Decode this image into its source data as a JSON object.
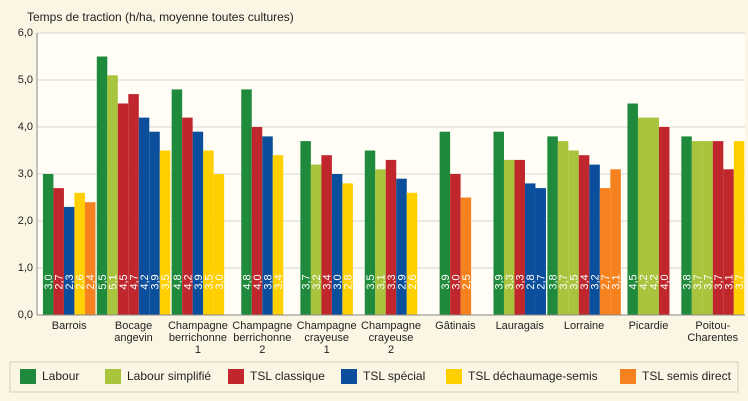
{
  "chart_data": {
    "type": "grouped-bar",
    "title": "Temps de traction (h/ha, moyenne toutes cultures)",
    "ylim": [
      0,
      6
    ],
    "yticks": [
      {
        "value": 0,
        "label": "0,0"
      },
      {
        "value": 1,
        "label": "1,0"
      },
      {
        "value": 2,
        "label": "2,0"
      },
      {
        "value": 3,
        "label": "3,0"
      },
      {
        "value": 4,
        "label": "4,0"
      },
      {
        "value": 5,
        "label": "5,0"
      },
      {
        "value": 6,
        "label": "6,0"
      }
    ],
    "grid": true,
    "legend": [
      {
        "name": "Labour",
        "color": "#1f8a3b"
      },
      {
        "name": "Labour simplifié",
        "color": "#a8c43c"
      },
      {
        "name": "TSL classique",
        "color": "#c0272d"
      },
      {
        "name": "TSL spécial",
        "color": "#0b4f9c"
      },
      {
        "name": "TSL déchaumage-semis",
        "color": "#ffcf00"
      },
      {
        "name": "TSL semis direct",
        "color": "#f5821f"
      }
    ],
    "groups": [
      {
        "category": "Barrois",
        "values": [
          3.0,
          2.7,
          2.3,
          2.6,
          2.4
        ],
        "value_labels": [
          "3,0",
          "2,7",
          "2,3",
          "2,6",
          "2,4"
        ],
        "colors": [
          "#1f8a3b",
          "#c0272d",
          "#0b4f9c",
          "#ffcf00",
          "#f5821f"
        ]
      },
      {
        "category": "Bocage\nangevin",
        "values": [
          5.5,
          5.1,
          4.5,
          4.7,
          4.2,
          3.9,
          3.5
        ],
        "value_labels": [
          "5,5",
          "5,1",
          "4,5",
          "4,7",
          "4,2",
          "3,9",
          "3,5"
        ],
        "colors": [
          "#1f8a3b",
          "#a8c43c",
          "#c0272d",
          "#c0272d",
          "#0b4f9c",
          "#0b4f9c",
          "#ffcf00"
        ]
      },
      {
        "category": "Champagne\nberrichonne\n1",
        "values": [
          4.8,
          4.2,
          3.9,
          3.5,
          3.0
        ],
        "value_labels": [
          "4,8",
          "4,2",
          "3,9",
          "3,5",
          "3,0"
        ],
        "colors": [
          "#1f8a3b",
          "#c0272d",
          "#0b4f9c",
          "#ffcf00",
          "#ffcf00"
        ]
      },
      {
        "category": "Champagne\nberrichonne\n2",
        "values": [
          4.8,
          4.0,
          3.8,
          3.4
        ],
        "value_labels": [
          "4,8",
          "4,0",
          "3,8",
          "3,4"
        ],
        "colors": [
          "#1f8a3b",
          "#c0272d",
          "#0b4f9c",
          "#ffcf00"
        ]
      },
      {
        "category": "Champagne\ncrayeuse\n1",
        "values": [
          3.7,
          3.2,
          3.4,
          3.0,
          2.8
        ],
        "value_labels": [
          "3,7",
          "3,2",
          "3,4",
          "3,0",
          "2,8"
        ],
        "colors": [
          "#1f8a3b",
          "#a8c43c",
          "#c0272d",
          "#0b4f9c",
          "#ffcf00"
        ]
      },
      {
        "category": "Champagne\ncrayeuse\n2",
        "values": [
          3.5,
          3.1,
          3.3,
          2.9,
          2.6
        ],
        "value_labels": [
          "3,5",
          "3,1",
          "3,3",
          "2,9",
          "2,6"
        ],
        "colors": [
          "#1f8a3b",
          "#a8c43c",
          "#c0272d",
          "#0b4f9c",
          "#ffcf00"
        ]
      },
      {
        "category": "Gâtinais",
        "values": [
          3.9,
          3.0,
          2.5
        ],
        "value_labels": [
          "3,9",
          "3,0",
          "2,5"
        ],
        "colors": [
          "#1f8a3b",
          "#c0272d",
          "#f5821f"
        ]
      },
      {
        "category": "Lauragais",
        "values": [
          3.9,
          3.3,
          3.3,
          2.8,
          2.7
        ],
        "value_labels": [
          "3,9",
          "3,3",
          "3,3",
          "2,8",
          "2,7"
        ],
        "colors": [
          "#1f8a3b",
          "#a8c43c",
          "#c0272d",
          "#0b4f9c",
          "#0b4f9c"
        ]
      },
      {
        "category": "Lorraine",
        "values": [
          3.8,
          3.7,
          3.5,
          3.4,
          3.2,
          2.7,
          3.1
        ],
        "value_labels": [
          "3,8",
          "3,7",
          "3,5",
          "3,4",
          "3,2",
          "2,7",
          "3,1"
        ],
        "colors": [
          "#1f8a3b",
          "#a8c43c",
          "#a8c43c",
          "#c0272d",
          "#0b4f9c",
          "#f5821f",
          "#f5821f"
        ]
      },
      {
        "category": "Picardie",
        "values": [
          4.5,
          4.2,
          4.2,
          4.0
        ],
        "value_labels": [
          "4,5",
          "4,2",
          "4,2",
          "4,0"
        ],
        "colors": [
          "#1f8a3b",
          "#a8c43c",
          "#a8c43c",
          "#c0272d"
        ]
      },
      {
        "category": "Poitou-\nCharentes",
        "values": [
          3.8,
          3.7,
          3.7,
          3.7,
          3.1,
          3.7
        ],
        "value_labels": [
          "3,8",
          "3,7",
          "3,7",
          "3,7",
          "3,1",
          "3,7"
        ],
        "colors": [
          "#1f8a3b",
          "#a8c43c",
          "#a8c43c",
          "#c0272d",
          "#c0272d",
          "#ffcf00"
        ]
      }
    ]
  }
}
